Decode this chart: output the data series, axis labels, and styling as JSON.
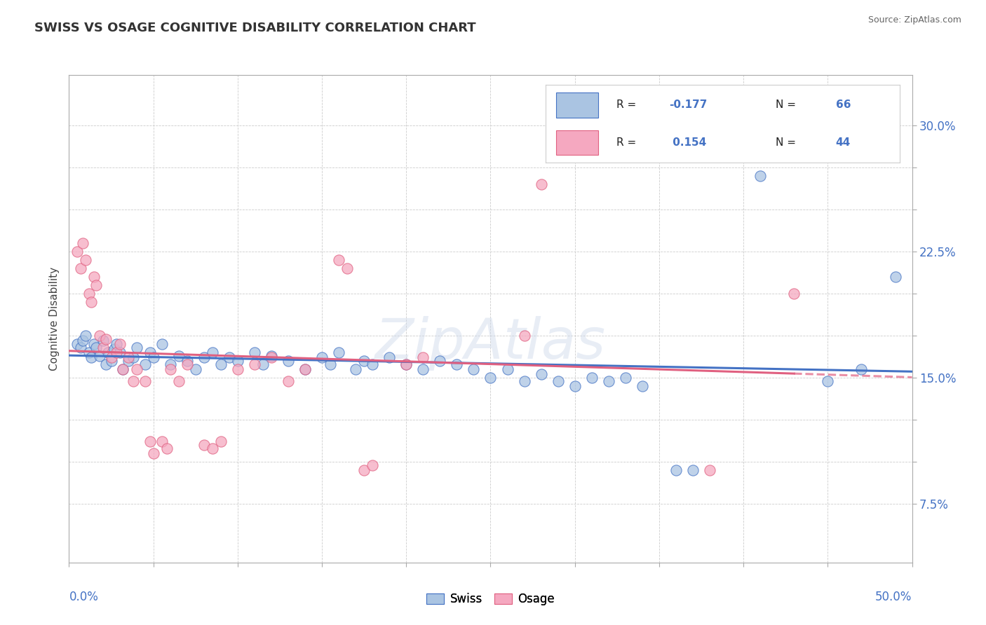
{
  "title": "SWISS VS OSAGE COGNITIVE DISABILITY CORRELATION CHART",
  "source": "Source: ZipAtlas.com",
  "ylabel": "Cognitive Disability",
  "yticks": [
    0.075,
    0.1,
    0.125,
    0.15,
    0.175,
    0.2,
    0.225,
    0.25,
    0.275,
    0.3
  ],
  "ytick_labels": [
    "7.5%",
    "",
    "",
    "15.0%",
    "",
    "",
    "22.5%",
    "",
    "",
    "30.0%"
  ],
  "xlim": [
    0.0,
    0.5
  ],
  "ylim": [
    0.04,
    0.33
  ],
  "swiss_color": "#aac4e2",
  "osage_color": "#f5a8c0",
  "swiss_line_color": "#4472c4",
  "osage_line_color": "#e06080",
  "swiss_points": [
    [
      0.005,
      0.17
    ],
    [
      0.007,
      0.168
    ],
    [
      0.008,
      0.172
    ],
    [
      0.01,
      0.175
    ],
    [
      0.012,
      0.165
    ],
    [
      0.013,
      0.162
    ],
    [
      0.015,
      0.17
    ],
    [
      0.016,
      0.168
    ],
    [
      0.018,
      0.163
    ],
    [
      0.02,
      0.172
    ],
    [
      0.022,
      0.158
    ],
    [
      0.023,
      0.165
    ],
    [
      0.025,
      0.16
    ],
    [
      0.027,
      0.167
    ],
    [
      0.028,
      0.17
    ],
    [
      0.03,
      0.165
    ],
    [
      0.032,
      0.155
    ],
    [
      0.035,
      0.16
    ],
    [
      0.038,
      0.162
    ],
    [
      0.04,
      0.168
    ],
    [
      0.045,
      0.158
    ],
    [
      0.048,
      0.165
    ],
    [
      0.05,
      0.162
    ],
    [
      0.055,
      0.17
    ],
    [
      0.06,
      0.158
    ],
    [
      0.065,
      0.163
    ],
    [
      0.07,
      0.16
    ],
    [
      0.075,
      0.155
    ],
    [
      0.08,
      0.162
    ],
    [
      0.085,
      0.165
    ],
    [
      0.09,
      0.158
    ],
    [
      0.095,
      0.162
    ],
    [
      0.1,
      0.16
    ],
    [
      0.11,
      0.165
    ],
    [
      0.115,
      0.158
    ],
    [
      0.12,
      0.163
    ],
    [
      0.13,
      0.16
    ],
    [
      0.14,
      0.155
    ],
    [
      0.15,
      0.162
    ],
    [
      0.155,
      0.158
    ],
    [
      0.16,
      0.165
    ],
    [
      0.17,
      0.155
    ],
    [
      0.175,
      0.16
    ],
    [
      0.18,
      0.158
    ],
    [
      0.19,
      0.162
    ],
    [
      0.2,
      0.158
    ],
    [
      0.21,
      0.155
    ],
    [
      0.22,
      0.16
    ],
    [
      0.23,
      0.158
    ],
    [
      0.24,
      0.155
    ],
    [
      0.25,
      0.15
    ],
    [
      0.26,
      0.155
    ],
    [
      0.27,
      0.148
    ],
    [
      0.28,
      0.152
    ],
    [
      0.29,
      0.148
    ],
    [
      0.3,
      0.145
    ],
    [
      0.31,
      0.15
    ],
    [
      0.32,
      0.148
    ],
    [
      0.33,
      0.15
    ],
    [
      0.34,
      0.145
    ],
    [
      0.36,
      0.095
    ],
    [
      0.37,
      0.095
    ],
    [
      0.41,
      0.27
    ],
    [
      0.45,
      0.148
    ],
    [
      0.47,
      0.155
    ],
    [
      0.49,
      0.21
    ]
  ],
  "osage_points": [
    [
      0.005,
      0.225
    ],
    [
      0.007,
      0.215
    ],
    [
      0.008,
      0.23
    ],
    [
      0.01,
      0.22
    ],
    [
      0.012,
      0.2
    ],
    [
      0.013,
      0.195
    ],
    [
      0.015,
      0.21
    ],
    [
      0.016,
      0.205
    ],
    [
      0.018,
      0.175
    ],
    [
      0.02,
      0.168
    ],
    [
      0.022,
      0.173
    ],
    [
      0.025,
      0.162
    ],
    [
      0.028,
      0.165
    ],
    [
      0.03,
      0.17
    ],
    [
      0.032,
      0.155
    ],
    [
      0.035,
      0.162
    ],
    [
      0.038,
      0.148
    ],
    [
      0.04,
      0.155
    ],
    [
      0.045,
      0.148
    ],
    [
      0.048,
      0.112
    ],
    [
      0.05,
      0.105
    ],
    [
      0.055,
      0.112
    ],
    [
      0.058,
      0.108
    ],
    [
      0.06,
      0.155
    ],
    [
      0.065,
      0.148
    ],
    [
      0.07,
      0.158
    ],
    [
      0.08,
      0.11
    ],
    [
      0.085,
      0.108
    ],
    [
      0.09,
      0.112
    ],
    [
      0.1,
      0.155
    ],
    [
      0.11,
      0.158
    ],
    [
      0.12,
      0.162
    ],
    [
      0.13,
      0.148
    ],
    [
      0.14,
      0.155
    ],
    [
      0.16,
      0.22
    ],
    [
      0.165,
      0.215
    ],
    [
      0.175,
      0.095
    ],
    [
      0.18,
      0.098
    ],
    [
      0.2,
      0.158
    ],
    [
      0.21,
      0.162
    ],
    [
      0.27,
      0.175
    ],
    [
      0.28,
      0.265
    ],
    [
      0.38,
      0.095
    ],
    [
      0.43,
      0.2
    ]
  ]
}
